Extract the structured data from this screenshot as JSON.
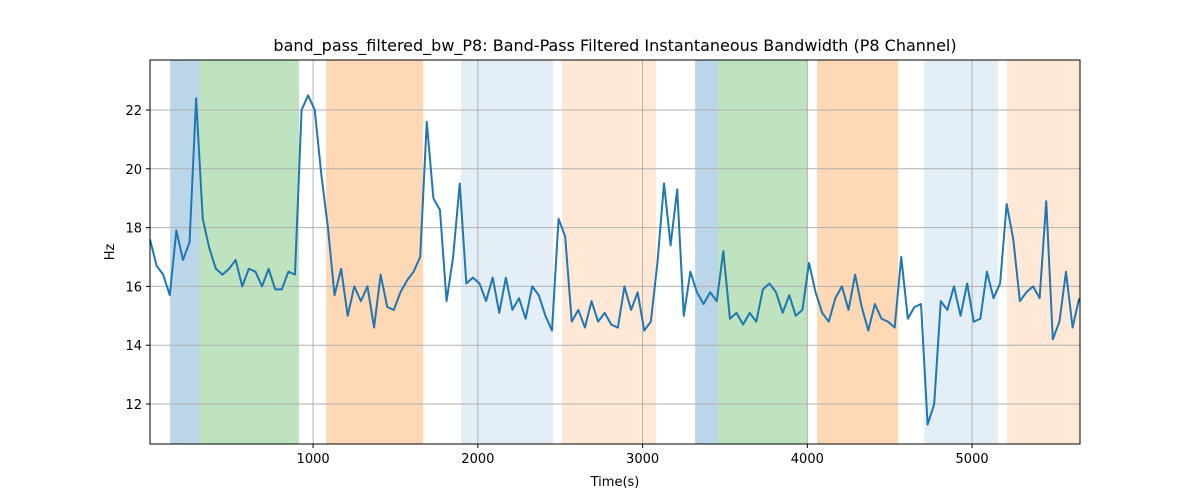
{
  "chart_data": {
    "type": "line",
    "title": "band_pass_filtered_bw_P8: Band-Pass Filtered Instantaneous Bandwidth (P8 Channel)",
    "xlabel": "Time(s)",
    "ylabel": "Hz",
    "xlim": [
      10,
      5655
    ],
    "ylim": [
      10.64,
      23.7
    ],
    "xticks": [
      1000,
      2000,
      3000,
      4000,
      5000
    ],
    "yticks": [
      12,
      14,
      16,
      18,
      20,
      22
    ],
    "grid": true,
    "spans": [
      {
        "x": [
          132,
          308
        ],
        "color": "#1f77b4",
        "opacity": 0.3
      },
      {
        "x": [
          308,
          915
        ],
        "color": "#2ca02c",
        "opacity": 0.3
      },
      {
        "x": [
          1079,
          1668
        ],
        "color": "#ff7f0e",
        "opacity": 0.3
      },
      {
        "x": [
          1898,
          2457
        ],
        "color": "#1f77b4",
        "opacity": 0.12
      },
      {
        "x": [
          2511,
          3082
        ],
        "color": "#ff7f0e",
        "opacity": 0.17
      },
      {
        "x": [
          3319,
          3458
        ],
        "color": "#1f77b4",
        "opacity": 0.3
      },
      {
        "x": [
          3458,
          3998
        ],
        "color": "#2ca02c",
        "opacity": 0.3
      },
      {
        "x": [
          4059,
          4551
        ],
        "color": "#ff7f0e",
        "opacity": 0.3
      },
      {
        "x": [
          4709,
          5158
        ],
        "color": "#1f77b4",
        "opacity": 0.12
      },
      {
        "x": [
          5212,
          5655
        ],
        "color": "#ff7f0e",
        "opacity": 0.17
      }
    ],
    "x": [
      10,
      50,
      90,
      130,
      170,
      210,
      250,
      290,
      330,
      370,
      410,
      450,
      490,
      530,
      570,
      610,
      650,
      690,
      730,
      770,
      810,
      850,
      890,
      930,
      970,
      1010,
      1050,
      1090,
      1130,
      1170,
      1210,
      1250,
      1290,
      1330,
      1370,
      1410,
      1450,
      1490,
      1530,
      1570,
      1610,
      1650,
      1690,
      1730,
      1770,
      1810,
      1850,
      1890,
      1930,
      1970,
      2010,
      2050,
      2090,
      2130,
      2170,
      2210,
      2250,
      2290,
      2330,
      2370,
      2410,
      2450,
      2490,
      2530,
      2570,
      2610,
      2650,
      2690,
      2730,
      2770,
      2810,
      2850,
      2890,
      2930,
      2970,
      3010,
      3050,
      3090,
      3130,
      3170,
      3210,
      3250,
      3290,
      3330,
      3370,
      3410,
      3450,
      3490,
      3530,
      3570,
      3610,
      3650,
      3690,
      3730,
      3770,
      3810,
      3850,
      3890,
      3930,
      3970,
      4010,
      4050,
      4090,
      4130,
      4170,
      4210,
      4250,
      4290,
      4330,
      4370,
      4410,
      4450,
      4490,
      4530,
      4570,
      4610,
      4650,
      4690,
      4730,
      4770,
      4810,
      4850,
      4890,
      4930,
      4970,
      5010,
      5050,
      5090,
      5130,
      5170,
      5210,
      5250,
      5290,
      5330,
      5370,
      5410,
      5450,
      5490,
      5530,
      5570,
      5610,
      5650
    ],
    "series": [
      {
        "color": "#1f77b4",
        "values": [
          17.6,
          16.7,
          16.4,
          15.7,
          17.9,
          16.9,
          17.5,
          22.4,
          18.3,
          17.3,
          16.6,
          16.4,
          16.6,
          16.9,
          16.0,
          16.6,
          16.5,
          16.0,
          16.6,
          15.9,
          15.9,
          16.5,
          16.4,
          22.0,
          22.5,
          22.0,
          19.8,
          18.0,
          15.7,
          16.6,
          15.0,
          16.0,
          15.5,
          16.0,
          14.6,
          16.4,
          15.3,
          15.2,
          15.8,
          16.2,
          16.5,
          17.0,
          21.6,
          19.0,
          18.6,
          15.5,
          17.0,
          19.5,
          16.1,
          16.3,
          16.1,
          15.5,
          16.3,
          15.1,
          16.3,
          15.2,
          15.6,
          14.9,
          16.0,
          15.7,
          15.0,
          14.5,
          18.3,
          17.7,
          14.8,
          15.2,
          14.6,
          15.5,
          14.8,
          15.1,
          14.7,
          14.6,
          16.0,
          15.2,
          15.8,
          14.5,
          14.8,
          16.8,
          19.5,
          17.4,
          19.3,
          15.0,
          16.5,
          15.8,
          15.4,
          15.8,
          15.5,
          17.2,
          14.9,
          15.1,
          14.7,
          15.1,
          14.8,
          15.9,
          16.1,
          15.8,
          15.1,
          15.7,
          15.0,
          15.2,
          16.8,
          15.8,
          15.1,
          14.8,
          15.6,
          16.0,
          15.2,
          16.4,
          15.3,
          14.5,
          15.4,
          14.9,
          14.8,
          14.6,
          17.0,
          14.9,
          15.3,
          15.4,
          11.3,
          12.0,
          15.5,
          15.2,
          16.0,
          15.0,
          16.1,
          14.8,
          14.9,
          16.5,
          15.6,
          16.1,
          18.8,
          17.6,
          15.5,
          15.8,
          16.0,
          15.6,
          18.9,
          14.2,
          14.8,
          16.5,
          14.6,
          15.6
        ]
      }
    ]
  }
}
